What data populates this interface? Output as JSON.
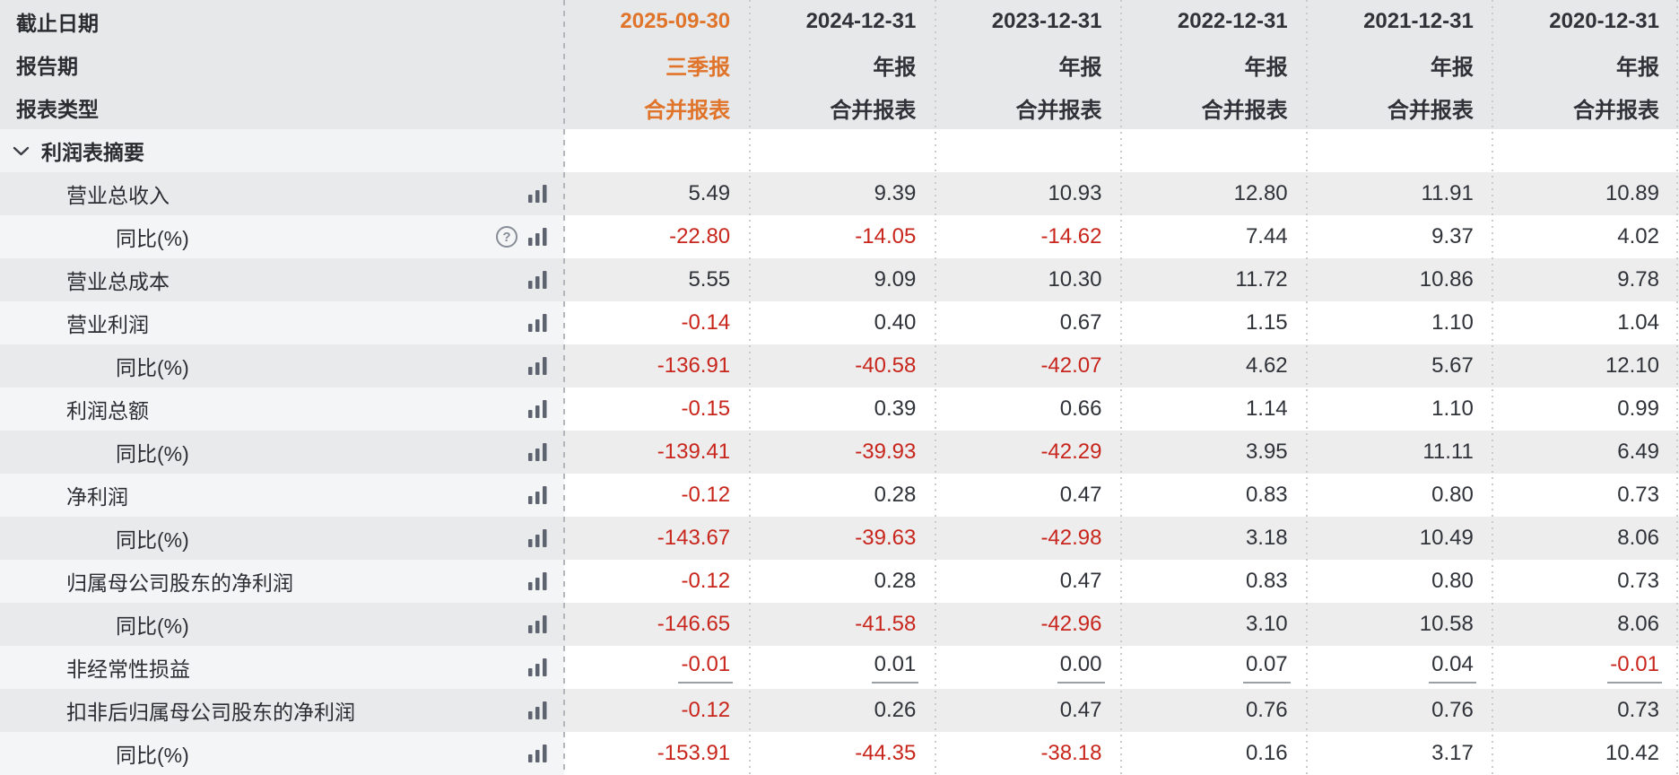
{
  "colors": {
    "accent_orange": "#e0742a",
    "negative_red": "#c8261c",
    "text_dark": "#2f3238",
    "header_bg": "#e7e8e9",
    "row_gray_bg": "#ededee",
    "row_white_bg": "#ffffff"
  },
  "icons": {
    "chevron": "chevron-down-icon",
    "help": "help-icon",
    "bar_chart": "bar-chart-icon"
  },
  "header": {
    "rows": [
      {
        "label": "截止日期",
        "values": [
          "2025-09-30",
          "2024-12-31",
          "2023-12-31",
          "2022-12-31",
          "2021-12-31",
          "2020-12-31"
        ]
      },
      {
        "label": "报告期",
        "values": [
          "三季报",
          "年报",
          "年报",
          "年报",
          "年报",
          "年报"
        ]
      },
      {
        "label": "报表类型",
        "values": [
          "合并报表",
          "合并报表",
          "合并报表",
          "合并报表",
          "合并报表",
          "合并报表"
        ]
      }
    ]
  },
  "section": {
    "title": "利润表摘要"
  },
  "table": {
    "rows": [
      {
        "label": "营业总收入",
        "indent": 1,
        "help": false,
        "underline": false,
        "shade": "g",
        "values": [
          "5.49",
          "9.39",
          "10.93",
          "12.80",
          "11.91",
          "10.89"
        ]
      },
      {
        "label": "同比(%)",
        "indent": 2,
        "help": true,
        "underline": false,
        "shade": "l",
        "values": [
          "-22.80",
          "-14.05",
          "-14.62",
          "7.44",
          "9.37",
          "4.02"
        ]
      },
      {
        "label": "营业总成本",
        "indent": 1,
        "help": false,
        "underline": false,
        "shade": "g",
        "values": [
          "5.55",
          "9.09",
          "10.30",
          "11.72",
          "10.86",
          "9.78"
        ]
      },
      {
        "label": "营业利润",
        "indent": 1,
        "help": false,
        "underline": false,
        "shade": "l",
        "values": [
          "-0.14",
          "0.40",
          "0.67",
          "1.15",
          "1.10",
          "1.04"
        ]
      },
      {
        "label": "同比(%)",
        "indent": 2,
        "help": false,
        "underline": false,
        "shade": "g",
        "values": [
          "-136.91",
          "-40.58",
          "-42.07",
          "4.62",
          "5.67",
          "12.10"
        ]
      },
      {
        "label": "利润总额",
        "indent": 1,
        "help": false,
        "underline": false,
        "shade": "l",
        "values": [
          "-0.15",
          "0.39",
          "0.66",
          "1.14",
          "1.10",
          "0.99"
        ]
      },
      {
        "label": "同比(%)",
        "indent": 2,
        "help": false,
        "underline": false,
        "shade": "g",
        "values": [
          "-139.41",
          "-39.93",
          "-42.29",
          "3.95",
          "11.11",
          "6.49"
        ]
      },
      {
        "label": "净利润",
        "indent": 1,
        "help": false,
        "underline": false,
        "shade": "l",
        "values": [
          "-0.12",
          "0.28",
          "0.47",
          "0.83",
          "0.80",
          "0.73"
        ]
      },
      {
        "label": "同比(%)",
        "indent": 2,
        "help": false,
        "underline": false,
        "shade": "g",
        "values": [
          "-143.67",
          "-39.63",
          "-42.98",
          "3.18",
          "10.49",
          "8.06"
        ]
      },
      {
        "label": "归属母公司股东的净利润",
        "indent": 1,
        "help": false,
        "underline": false,
        "shade": "l",
        "values": [
          "-0.12",
          "0.28",
          "0.47",
          "0.83",
          "0.80",
          "0.73"
        ]
      },
      {
        "label": "同比(%)",
        "indent": 2,
        "help": false,
        "underline": false,
        "shade": "g",
        "values": [
          "-146.65",
          "-41.58",
          "-42.96",
          "3.10",
          "10.58",
          "8.06"
        ]
      },
      {
        "label": "非经常性损益",
        "indent": 1,
        "help": false,
        "underline": true,
        "shade": "l",
        "values": [
          "-0.01",
          "0.01",
          "0.00",
          "0.07",
          "0.04",
          "-0.01"
        ]
      },
      {
        "label": "扣非后归属母公司股东的净利润",
        "indent": 1,
        "help": false,
        "underline": false,
        "shade": "g",
        "values": [
          "-0.12",
          "0.26",
          "0.47",
          "0.76",
          "0.76",
          "0.73"
        ]
      },
      {
        "label": "同比(%)",
        "indent": 2,
        "help": false,
        "underline": false,
        "shade": "l",
        "values": [
          "-153.91",
          "-44.35",
          "-38.18",
          "0.16",
          "3.17",
          "10.42"
        ]
      }
    ]
  }
}
